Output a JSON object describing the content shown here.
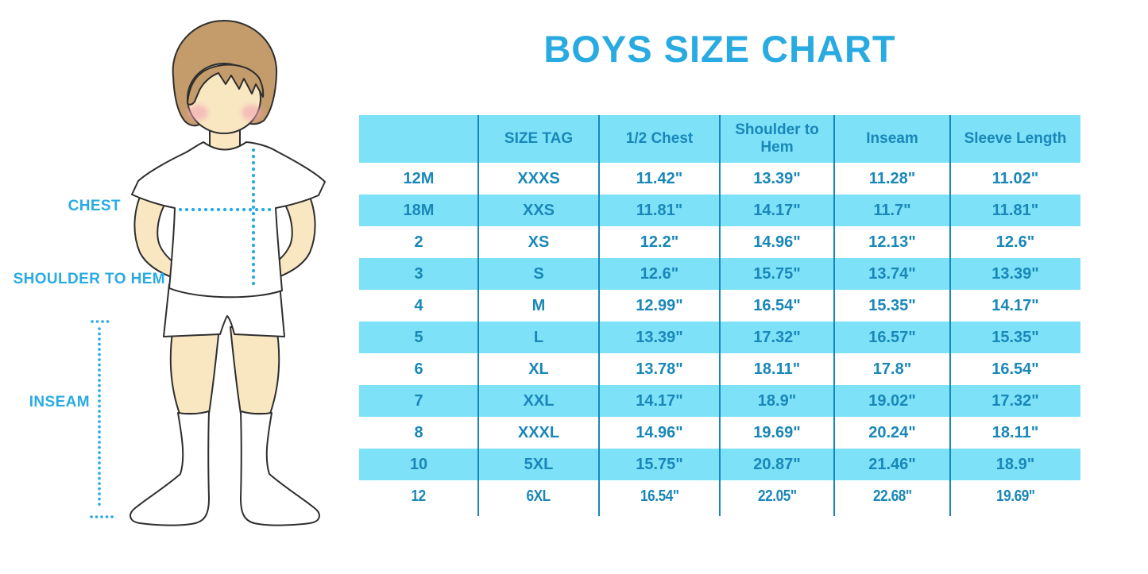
{
  "title": "BOYS SIZE CHART",
  "colors": {
    "accent": "#29ABE2",
    "band": "#7DE1F8",
    "table_text": "#1987B8"
  },
  "figure": {
    "description": "boy-in-white-tshirt-shorts-and-socks",
    "labels": {
      "chest": "CHEST",
      "shoulder_to_hem": "SHOULDER TO HEM",
      "inseam": "INSEAM"
    }
  },
  "chart_data": {
    "type": "table",
    "title": "BOYS SIZE CHART",
    "columns": [
      "",
      "SIZE TAG",
      "1/2 Chest",
      "Shoulder to Hem",
      "Inseam",
      "Sleeve Length"
    ],
    "rows": [
      [
        "12M",
        "XXXS",
        "11.42\"",
        "13.39\"",
        "11.28\"",
        "11.02\""
      ],
      [
        "18M",
        "XXS",
        "11.81\"",
        "14.17\"",
        "11.7\"",
        "11.81\""
      ],
      [
        "2",
        "XS",
        "12.2\"",
        "14.96\"",
        "12.13\"",
        "12.6\""
      ],
      [
        "3",
        "S",
        "12.6\"",
        "15.75\"",
        "13.74\"",
        "13.39\""
      ],
      [
        "4",
        "M",
        "12.99\"",
        "16.54\"",
        "15.35\"",
        "14.17\""
      ],
      [
        "5",
        "L",
        "13.39\"",
        "17.32\"",
        "16.57\"",
        "15.35\""
      ],
      [
        "6",
        "XL",
        "13.78\"",
        "18.11\"",
        "17.8\"",
        "16.54\""
      ],
      [
        "7",
        "XXL",
        "14.17\"",
        "18.9\"",
        "19.02\"",
        "17.32\""
      ],
      [
        "8",
        "XXXL",
        "14.96\"",
        "19.69\"",
        "20.24\"",
        "18.11\""
      ],
      [
        "10",
        "5XL",
        "15.75\"",
        "20.87\"",
        "21.46\"",
        "18.9\""
      ],
      [
        "12",
        "6XL",
        "16.54\"",
        "22.05\"",
        "22.68\"",
        "19.69\""
      ]
    ]
  }
}
